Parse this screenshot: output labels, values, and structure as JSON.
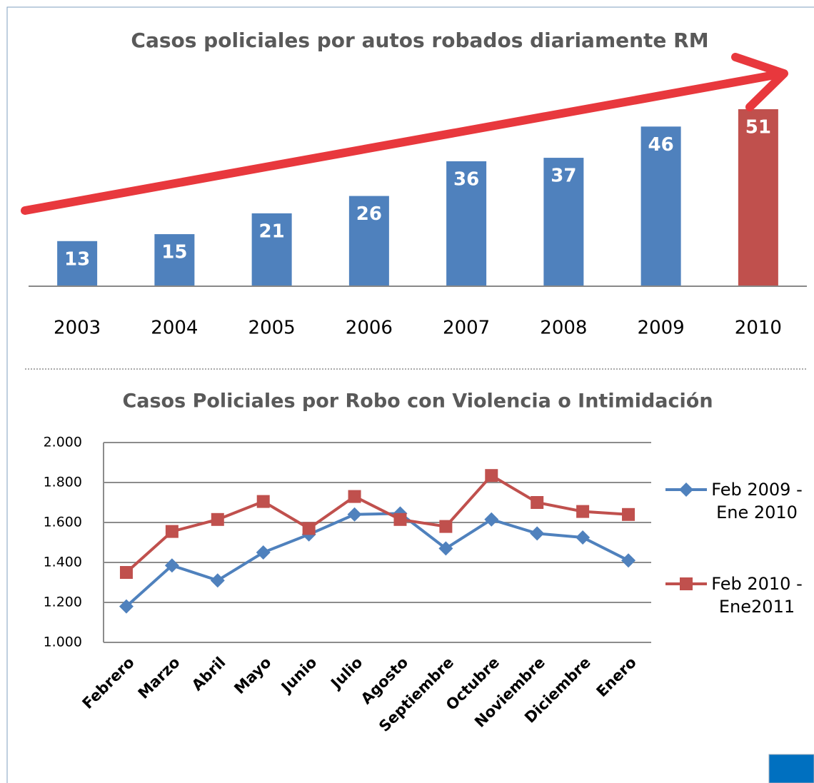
{
  "chart_data": [
    {
      "type": "bar",
      "title": "Casos policiales por autos robados diariamente RM",
      "categories": [
        "2003",
        "2004",
        "2005",
        "2006",
        "2007",
        "2008",
        "2009",
        "2010"
      ],
      "values": [
        13,
        15,
        21,
        26,
        36,
        37,
        46,
        51
      ],
      "colors": [
        "#4f81bd",
        "#4f81bd",
        "#4f81bd",
        "#4f81bd",
        "#4f81bd",
        "#4f81bd",
        "#4f81bd",
        "#c0504d"
      ]
    },
    {
      "type": "line",
      "title": "Casos Policiales por Robo con Violencia o Intimidación",
      "categories": [
        "Febrero",
        "Marzo",
        "Abril",
        "Mayo",
        "Junio",
        "Julio",
        "Agosto",
        "Septiembre",
        "Octubre",
        "Noviembre",
        "Diciembre",
        "Enero"
      ],
      "series": [
        {
          "name": "Feb 2009 - Ene 2010",
          "color": "#4f81bd",
          "marker": "diamond",
          "values": [
            1180,
            1385,
            1310,
            1450,
            1540,
            1640,
            1645,
            1470,
            1615,
            1545,
            1525,
            1410
          ]
        },
        {
          "name": "Feb 2010 - Ene2011",
          "color": "#c0504d",
          "marker": "square",
          "values": [
            1350,
            1555,
            1615,
            1705,
            1570,
            1730,
            1615,
            1580,
            1835,
            1700,
            1655,
            1640
          ]
        }
      ],
      "ylim": [
        1000,
        2000
      ],
      "yticks": [
        {
          "value": 1000,
          "label": "1.000"
        },
        {
          "value": 1200,
          "label": "1.200"
        },
        {
          "value": 1400,
          "label": "1.400"
        },
        {
          "value": 1600,
          "label": "1.600"
        },
        {
          "value": 1800,
          "label": "1.800"
        },
        {
          "value": 2000,
          "label": "2.000"
        }
      ],
      "grid": true,
      "legend": "right"
    }
  ]
}
